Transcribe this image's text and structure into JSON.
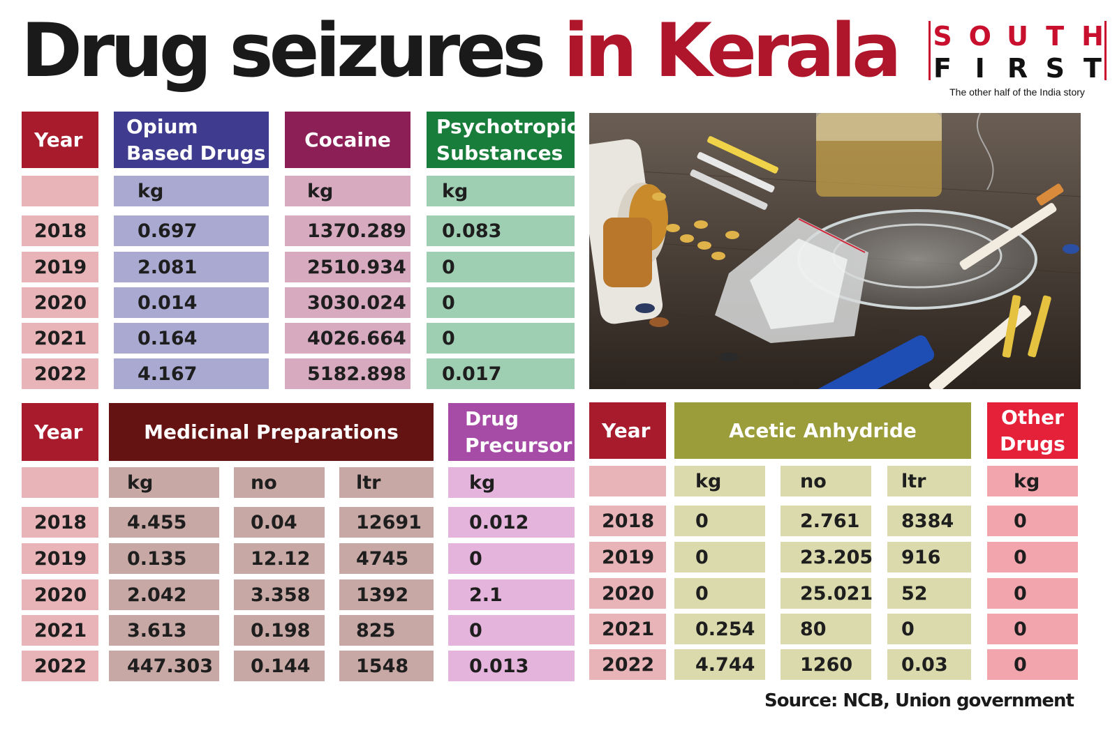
{
  "title": {
    "part1": "Drug seizures",
    "part2": "in Kerala"
  },
  "logo": {
    "top": [
      "S",
      "O",
      "U",
      "T",
      "H"
    ],
    "bottom": [
      "F",
      "I",
      "R",
      "S",
      "T"
    ],
    "tagline": "The other half of the India story"
  },
  "table1": {
    "year_header": "Year",
    "headers": [
      "Opium Based Drugs",
      "Cocaine",
      "Psychotropic Substances"
    ],
    "units": [
      "kg",
      "kg",
      "kg"
    ],
    "rows": [
      {
        "year": "2018",
        "values": [
          "0.697",
          "1370.289",
          "0.083"
        ]
      },
      {
        "year": "2019",
        "values": [
          "2.081",
          "2510.934",
          "0"
        ]
      },
      {
        "year": "2020",
        "values": [
          "0.014",
          "3030.024",
          "0"
        ]
      },
      {
        "year": "2021",
        "values": [
          "0.164",
          "4026.664",
          "0"
        ]
      },
      {
        "year": "2022",
        "values": [
          "4.167",
          "5182.898",
          "0.017"
        ]
      }
    ]
  },
  "table2": {
    "year_header": "Year",
    "headers": [
      "Medicinal Preparations",
      "Drug Precursor"
    ],
    "units": [
      "kg",
      "no",
      "ltr",
      "kg"
    ],
    "rows": [
      {
        "year": "2018",
        "values": [
          "4.455",
          "0.04",
          "12691",
          "0.012"
        ]
      },
      {
        "year": "2019",
        "values": [
          "0.135",
          "12.12",
          "4745",
          "0"
        ]
      },
      {
        "year": "2020",
        "values": [
          "2.042",
          "3.358",
          "1392",
          "2.1"
        ]
      },
      {
        "year": "2021",
        "values": [
          "3.613",
          "0.198",
          "825",
          "0"
        ]
      },
      {
        "year": "2022",
        "values": [
          "447.303",
          "0.144",
          "1548",
          "0.013"
        ]
      }
    ]
  },
  "table3": {
    "year_header": "Year",
    "headers": [
      "Acetic Anhydride",
      "Other Drugs"
    ],
    "units": [
      "kg",
      "no",
      "ltr",
      "kg"
    ],
    "rows": [
      {
        "year": "2018",
        "values": [
          "0",
          "2.761",
          "8384",
          "0"
        ]
      },
      {
        "year": "2019",
        "values": [
          "0",
          "23.205",
          "916",
          "0"
        ]
      },
      {
        "year": "2020",
        "values": [
          "0",
          "25.021",
          "52",
          "0"
        ]
      },
      {
        "year": "2021",
        "values": [
          "0.254",
          "80",
          "0",
          "0"
        ]
      },
      {
        "year": "2022",
        "values": [
          "4.744",
          "1260",
          "0.03",
          "0"
        ]
      }
    ]
  },
  "source": "Source: NCB, Union government",
  "colors": {
    "title_red": "#b0162b",
    "year_header": "#a71b2c",
    "opium": "#3f3b8f",
    "cocaine": "#8c1f56",
    "psychotropic": "#187c3a",
    "medicinal": "#651212",
    "precursor": "#a64ca6",
    "acetic": "#9b9d3a",
    "other": "#e5213a"
  }
}
